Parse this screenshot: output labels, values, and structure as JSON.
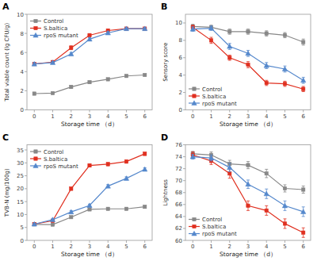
{
  "chart_data": [
    {
      "type": "line",
      "title": "A",
      "xlabel": "Storage time （d）",
      "ylabel": "Total viable count (lg CFU/g)",
      "x": [
        0,
        1,
        2,
        3,
        4,
        5,
        6
      ],
      "xlim": [
        -0.4,
        6.4
      ],
      "xticks": [
        0,
        1,
        2,
        3,
        4,
        5,
        6
      ],
      "ylim": [
        0,
        10
      ],
      "yticks": [
        0,
        2,
        4,
        6,
        8,
        10
      ],
      "grid": false,
      "legend": "upper left",
      "series": [
        {
          "name": "Control",
          "color": "#888888",
          "marker": "square",
          "values": [
            1.7,
            1.75,
            2.4,
            2.9,
            3.2,
            3.55,
            3.65
          ],
          "errors": [
            0.12,
            0.1,
            0.15,
            0.12,
            0.12,
            0.12,
            0.1
          ]
        },
        {
          "name": "S.baltica",
          "color": "#e03020",
          "marker": "square",
          "values": [
            4.8,
            5.0,
            6.5,
            7.8,
            8.3,
            8.5,
            8.5
          ],
          "errors": [
            0.15,
            0.12,
            0.2,
            0.18,
            0.15,
            0.12,
            0.12
          ]
        },
        {
          "name": "rpoS mutant",
          "color": "#5588cc",
          "marker": "triangle",
          "values": [
            4.8,
            4.95,
            5.85,
            7.4,
            8.05,
            8.5,
            8.5
          ],
          "errors": [
            0.15,
            0.12,
            0.15,
            0.15,
            0.15,
            0.12,
            0.12
          ]
        }
      ]
    },
    {
      "type": "line",
      "title": "B",
      "xlabel": "Storage time （d）",
      "ylabel": "Sensory score",
      "x": [
        0,
        1,
        2,
        3,
        4,
        5,
        6
      ],
      "xlim": [
        -0.4,
        6.4
      ],
      "xticks": [
        0,
        1,
        2,
        3,
        4,
        5,
        6
      ],
      "ylim": [
        0,
        11
      ],
      "yticks": [
        0,
        2,
        4,
        6,
        8,
        10
      ],
      "grid": false,
      "legend": "lower left",
      "series": [
        {
          "name": "Control",
          "color": "#888888",
          "marker": "square",
          "values": [
            9.6,
            9.5,
            9.0,
            9.0,
            8.8,
            8.6,
            7.8
          ],
          "errors": [
            0.25,
            0.25,
            0.3,
            0.3,
            0.3,
            0.3,
            0.35
          ]
        },
        {
          "name": "S.baltica",
          "color": "#e03020",
          "marker": "square",
          "values": [
            9.5,
            8.0,
            6.0,
            5.2,
            3.1,
            3.0,
            2.4
          ],
          "errors": [
            0.25,
            0.35,
            0.3,
            0.35,
            0.3,
            0.3,
            0.3
          ]
        },
        {
          "name": "rpoS mutant",
          "color": "#5588cc",
          "marker": "triangle",
          "values": [
            9.3,
            9.4,
            7.3,
            6.5,
            5.1,
            4.7,
            3.4
          ],
          "errors": [
            0.25,
            0.25,
            0.35,
            0.35,
            0.35,
            0.35,
            0.35
          ]
        }
      ]
    },
    {
      "type": "line",
      "title": "C",
      "xlabel": "Storage time （d）",
      "ylabel": "TVB-N (mg/100g)",
      "x": [
        0,
        1,
        2,
        3,
        4,
        5,
        6
      ],
      "xlim": [
        -0.4,
        6.4
      ],
      "xticks": [
        0,
        1,
        2,
        3,
        4,
        5,
        6
      ],
      "ylim": [
        0,
        37
      ],
      "yticks": [
        0,
        5,
        10,
        15,
        20,
        25,
        30,
        35
      ],
      "grid": false,
      "legend": "upper left",
      "series": [
        {
          "name": "Control",
          "color": "#888888",
          "marker": "square",
          "values": [
            6.2,
            6.1,
            9.0,
            12.0,
            12.2,
            12.2,
            13.0
          ],
          "errors": [
            0.3,
            0.3,
            0.4,
            0.5,
            0.4,
            0.4,
            0.5
          ]
        },
        {
          "name": "S.baltica",
          "color": "#e03020",
          "marker": "square",
          "values": [
            6.3,
            7.6,
            20.0,
            29.0,
            29.5,
            30.5,
            33.5
          ],
          "errors": [
            0.3,
            0.5,
            0.6,
            0.6,
            0.6,
            0.6,
            0.6
          ]
        },
        {
          "name": "rpoS mutant",
          "color": "#5588cc",
          "marker": "triangle",
          "values": [
            6.3,
            8.0,
            11.0,
            13.5,
            21.0,
            24.0,
            27.5
          ],
          "errors": [
            0.3,
            0.5,
            0.5,
            0.5,
            0.6,
            0.6,
            0.6
          ]
        }
      ]
    },
    {
      "type": "line",
      "title": "D",
      "xlabel": "Storage time （d）",
      "ylabel": "Lightness",
      "x": [
        0,
        1,
        2,
        3,
        4,
        5,
        6
      ],
      "xlim": [
        -0.4,
        6.4
      ],
      "xticks": [
        0,
        1,
        2,
        3,
        4,
        5,
        6
      ],
      "ylim": [
        60,
        76
      ],
      "yticks": [
        60,
        62,
        64,
        66,
        68,
        70,
        72,
        74,
        76
      ],
      "grid": false,
      "legend": "lower left",
      "series": [
        {
          "name": "Control",
          "color": "#888888",
          "marker": "square",
          "values": [
            74.5,
            74.3,
            72.8,
            72.6,
            71.2,
            68.7,
            68.5
          ],
          "errors": [
            0.4,
            0.5,
            0.6,
            0.6,
            0.7,
            0.6,
            0.6
          ]
        },
        {
          "name": "S.baltica",
          "color": "#e03020",
          "marker": "square",
          "values": [
            74.3,
            73.3,
            71.2,
            65.8,
            65.0,
            62.8,
            61.3
          ],
          "errors": [
            0.5,
            0.6,
            0.8,
            0.8,
            0.8,
            0.8,
            0.8
          ]
        },
        {
          "name": "rpoS mutant",
          "color": "#5588cc",
          "marker": "triangle",
          "values": [
            74.0,
            73.8,
            72.2,
            69.4,
            67.8,
            65.8,
            64.8
          ],
          "errors": [
            0.4,
            0.5,
            0.7,
            0.7,
            0.8,
            0.8,
            0.8
          ]
        }
      ]
    }
  ]
}
